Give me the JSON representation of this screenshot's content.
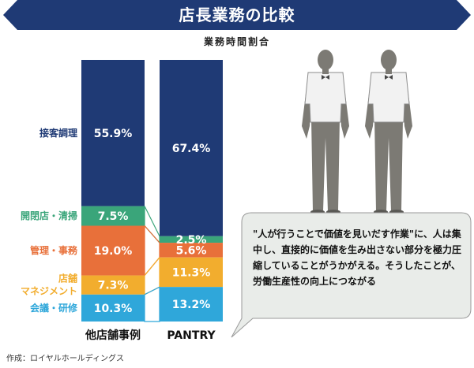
{
  "title": "店長業務の比較",
  "subtitle": "業務時間割合",
  "source": "作成：ロイヤルホールディングス",
  "bubble_text": "\"人が行うことで価値を見いだす作業\"に、人は集中し、直接的に価値を生み出さない部分を極力圧縮していることがうかがえる。そうしたことが、労働生産性の向上につながる",
  "colors": {
    "banner": "#1f3a75",
    "接客調理": "#1f3a75",
    "開閉店・清掃": "#3aa57a",
    "管理・事務": "#e8703a",
    "店舗マネジメント": "#f2ad2e",
    "会議・研修": "#2fa7da",
    "bubble": "#e9ece9"
  },
  "chart_data": {
    "type": "bar",
    "stacked": true,
    "categories": [
      "他店舗事例",
      "PANTRY"
    ],
    "title": "店長業務の比較",
    "subtitle": "業務時間割合",
    "ylim": [
      0,
      100
    ],
    "series": [
      {
        "name": "接客調理",
        "values": [
          55.9,
          67.4
        ],
        "labels": [
          "55.9%",
          "67.4%"
        ]
      },
      {
        "name": "開閉店・清掃",
        "values": [
          7.5,
          2.5
        ],
        "labels": [
          "7.5%",
          "2.5%"
        ]
      },
      {
        "name": "管理・事務",
        "values": [
          19.0,
          5.6
        ],
        "labels": [
          "19.0%",
          "5.6%"
        ]
      },
      {
        "name": "店舗マネジメント",
        "values": [
          7.3,
          11.3
        ],
        "labels": [
          "7.3%",
          "11.3%"
        ]
      },
      {
        "name": "会議・研修",
        "values": [
          10.3,
          13.2
        ],
        "labels": [
          "10.3%",
          "13.2%"
        ]
      }
    ],
    "series_labels": [
      "接客調理",
      "開閉店・清掃",
      "管理・事務",
      "店舗\nマネジメント",
      "会議・研修"
    ]
  }
}
